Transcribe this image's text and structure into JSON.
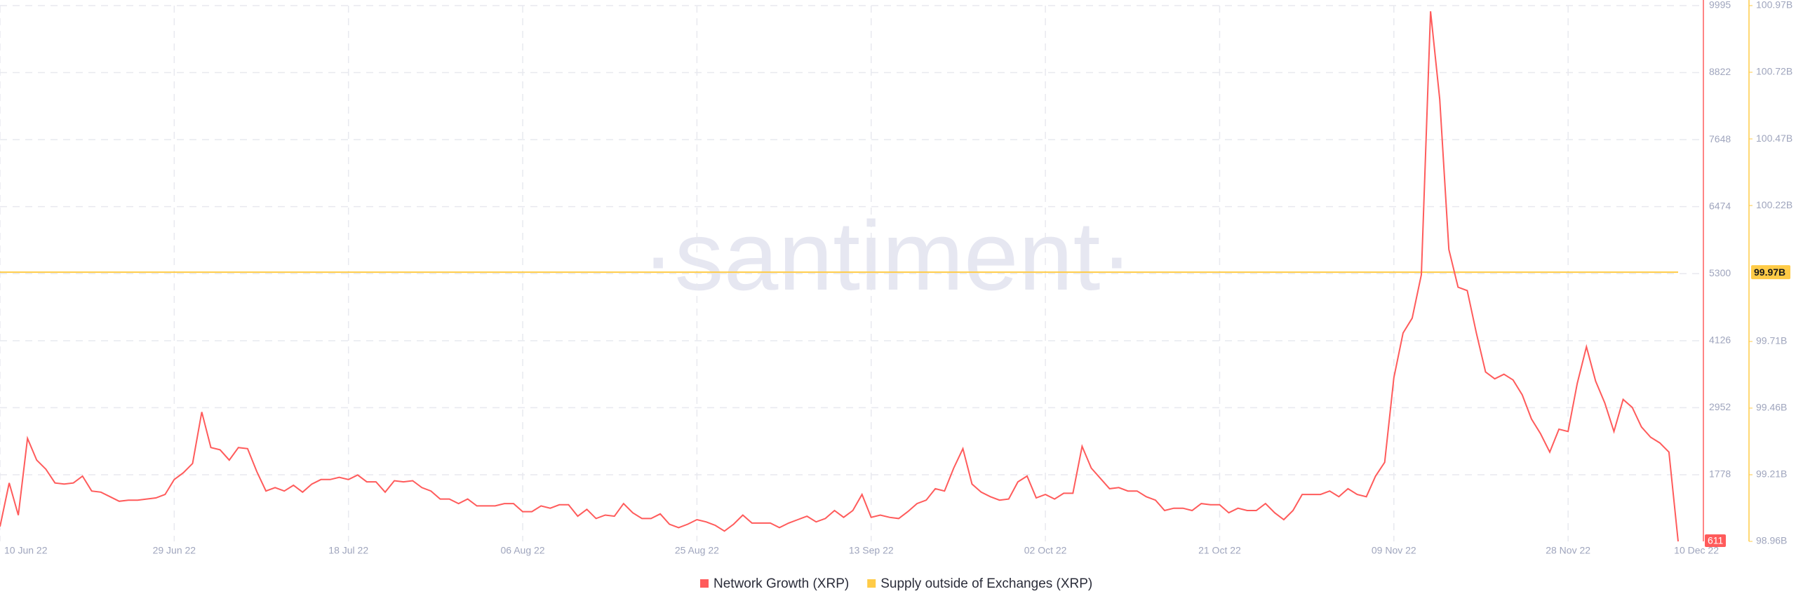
{
  "chart_data": {
    "type": "line",
    "watermark": "·santiment·",
    "categories": [
      "10 Jun 22",
      null,
      null,
      null,
      null,
      null,
      null,
      null,
      null,
      null,
      null,
      null,
      null,
      null,
      null,
      null,
      null,
      null,
      null,
      "29 Jun 22",
      null,
      null,
      null,
      null,
      null,
      null,
      null,
      null,
      null,
      null,
      null,
      null,
      null,
      null,
      null,
      null,
      null,
      null,
      "18 Jul 22",
      null,
      null,
      null,
      null,
      null,
      null,
      null,
      null,
      null,
      null,
      null,
      null,
      null,
      null,
      null,
      null,
      null,
      null,
      "06 Aug 22",
      null,
      null,
      null,
      null,
      null,
      null,
      null,
      null,
      null,
      null,
      null,
      null,
      null,
      null,
      null,
      null,
      null,
      null,
      "25 Aug 22",
      null,
      null,
      null,
      null,
      null,
      null,
      null,
      null,
      null,
      null,
      null,
      null,
      null,
      null,
      null,
      null,
      null,
      null,
      "13 Sep 22",
      null,
      null,
      null,
      null,
      null,
      null,
      null,
      null,
      null,
      null,
      null,
      null,
      null,
      null,
      null,
      null,
      null,
      null,
      "02 Oct 22",
      null,
      null,
      null,
      null,
      null,
      null,
      null,
      null,
      null,
      null,
      null,
      null,
      null,
      null,
      null,
      null,
      null,
      null,
      "21 Oct 22",
      null,
      null,
      null,
      null,
      null,
      null,
      null,
      null,
      null,
      null,
      null,
      null,
      null,
      null,
      null,
      null,
      null,
      null,
      "09 Nov 22",
      null,
      null,
      null,
      null,
      null,
      null,
      null,
      null,
      null,
      null,
      null,
      null,
      null,
      null,
      null,
      null,
      null,
      null,
      "28 Nov 22",
      null,
      null,
      null,
      null,
      null,
      null,
      null,
      null,
      null,
      null,
      null,
      "10 Dec 22"
    ],
    "series": [
      {
        "name": "Network Growth (XRP)",
        "color": "#ff5b5b",
        "axis": "y",
        "values": [
          870,
          1634,
          1070,
          2415,
          2035,
          1875,
          1634,
          1614,
          1634,
          1754,
          1493,
          1473,
          1393,
          1313,
          1333,
          1333,
          1353,
          1373,
          1433,
          1694,
          1814,
          1975,
          2877,
          2255,
          2215,
          2035,
          2255,
          2235,
          1834,
          1493,
          1553,
          1493,
          1594,
          1473,
          1614,
          1694,
          1694,
          1734,
          1694,
          1774,
          1654,
          1654,
          1473,
          1674,
          1654,
          1674,
          1553,
          1493,
          1353,
          1353,
          1273,
          1353,
          1232,
          1232,
          1232,
          1273,
          1273,
          1132,
          1132,
          1232,
          1192,
          1252,
          1252,
          1052,
          1172,
          1012,
          1072,
          1052,
          1273,
          1112,
          1012,
          1012,
          1092,
          912,
          852,
          912,
          992,
          952,
          892,
          792,
          912,
          1072,
          932,
          932,
          932,
          852,
          932,
          992,
          1052,
          952,
          1012,
          1152,
          1032,
          1152,
          1433,
          1032,
          1072,
          1032,
          1012,
          1132,
          1273,
          1333,
          1533,
          1493,
          1894,
          2235,
          1614,
          1473,
          1393,
          1333,
          1353,
          1654,
          1754,
          1373,
          1433,
          1353,
          1453,
          1453,
          2275,
          1894,
          1714,
          1533,
          1553,
          1493,
          1493,
          1393,
          1333,
          1152,
          1192,
          1192,
          1152,
          1273,
          1252,
          1252,
          1112,
          1192,
          1152,
          1152,
          1273,
          1112,
          992,
          1152,
          1433,
          1433,
          1433,
          1493,
          1393,
          1533,
          1433,
          1393,
          1754,
          1995,
          3478,
          4260,
          4521,
          5283,
          9895,
          8351,
          5724,
          5063,
          5003,
          4260,
          3578,
          3458,
          3538,
          3438,
          3177,
          2756,
          2496,
          2175,
          2576,
          2536,
          3378,
          4020,
          3418,
          3037,
          2536,
          3097,
          2957,
          2616,
          2435,
          2335,
          2175,
          611
        ]
      },
      {
        "name": "Supply outside of Exchanges (XRP)",
        "color": "#ffcb47",
        "axis": "y2",
        "last_value_label": "99.97B",
        "values": [
          99.97,
          99.97,
          99.97,
          99.97,
          99.97,
          99.97,
          99.97,
          99.97,
          99.97,
          99.97,
          99.97,
          99.97,
          99.97,
          99.97,
          99.97,
          99.97,
          99.97,
          99.97,
          99.97,
          99.97,
          99.97,
          99.97,
          99.97,
          99.97,
          99.97,
          99.97,
          99.97,
          99.97,
          99.97,
          99.97,
          99.97,
          99.97,
          99.97,
          99.97,
          99.97,
          99.97,
          99.97,
          99.97,
          99.97,
          99.97,
          99.97,
          99.97,
          99.97,
          99.97,
          99.97,
          99.97,
          99.97,
          99.97,
          99.97,
          99.97,
          99.97,
          99.97,
          99.97,
          99.97,
          99.97,
          99.97,
          99.97,
          99.97,
          99.97,
          99.97,
          99.97,
          99.97,
          99.97,
          99.97,
          99.97,
          99.97,
          99.97,
          99.97,
          99.97,
          99.97,
          99.97,
          99.97,
          99.97,
          99.97,
          99.97,
          99.97,
          99.97,
          99.97,
          99.97,
          99.97,
          99.97,
          99.97,
          99.97,
          99.97,
          99.97,
          99.97,
          99.97,
          99.97,
          99.97,
          99.97,
          99.97,
          99.97,
          99.97,
          99.97,
          99.97,
          99.97,
          99.97,
          99.97,
          99.97,
          99.97,
          99.97,
          99.97,
          99.97,
          99.97,
          99.97,
          99.97,
          99.97,
          99.97,
          99.97,
          99.97,
          99.97,
          99.97,
          99.97,
          99.97,
          99.97,
          99.97,
          99.97,
          99.97,
          99.97,
          99.97,
          99.97,
          99.97,
          99.97,
          99.97,
          99.97,
          99.97,
          99.97,
          99.97,
          99.97,
          99.97,
          99.97,
          99.97,
          99.97,
          99.97,
          99.97,
          99.97,
          99.97,
          99.97,
          99.97,
          99.97,
          99.97,
          99.97,
          99.97,
          99.97,
          99.97,
          99.97,
          99.97,
          99.97,
          99.97,
          99.97,
          99.97,
          99.97,
          99.97,
          99.97,
          99.97,
          99.97,
          99.97,
          99.97,
          99.97,
          99.97,
          99.97,
          99.97,
          99.97,
          99.97,
          99.97,
          99.97,
          99.97,
          99.97,
          99.97,
          99.97,
          99.97,
          99.97,
          99.97,
          99.97,
          99.97,
          99.97,
          99.97,
          99.97,
          99.97,
          99.97,
          99.97,
          99.97,
          99.97,
          99.97
        ]
      }
    ],
    "ylim": [
      611,
      9995
    ],
    "yticks": [
      1778,
      2952,
      4126,
      5300,
      6474,
      7648,
      8822,
      9995
    ],
    "y2lim": [
      98.96,
      100.97
    ],
    "y2ticks": [
      {
        "value": 98.96,
        "label": "98.96B"
      },
      {
        "value": 99.21,
        "label": "99.21B"
      },
      {
        "value": 99.46,
        "label": "99.46B"
      },
      {
        "value": 99.71,
        "label": "99.71B"
      },
      {
        "value": 100.22,
        "label": "100.22B"
      },
      {
        "value": 100.47,
        "label": "100.47B"
      },
      {
        "value": 100.72,
        "label": "100.72B"
      },
      {
        "value": 100.97,
        "label": "100.97B"
      }
    ],
    "grid": true,
    "legend": "bottom"
  }
}
